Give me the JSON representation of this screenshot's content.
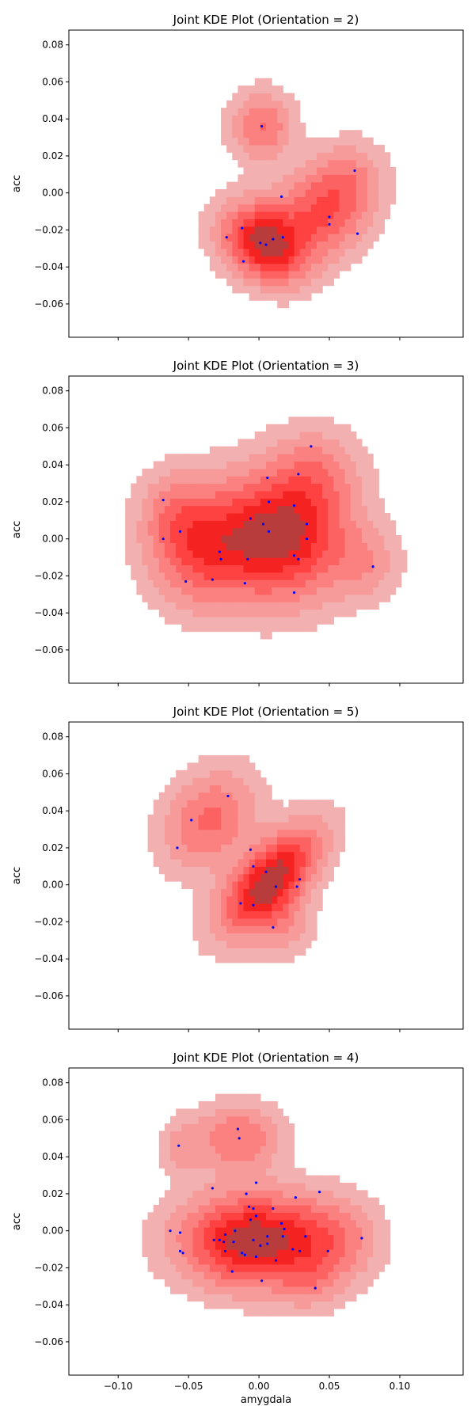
{
  "figure": {
    "xlabel": "amygdala"
  },
  "chart_data": [
    {
      "type": "scatter",
      "title": "Joint KDE Plot (Orientation = 2)",
      "ylabel": "acc",
      "xlim": [
        -0.135,
        0.145
      ],
      "ylim": [
        -0.078,
        0.088
      ],
      "fill_color": "#ff0000",
      "point_color": "#0000ff",
      "points": [
        [
          0.002,
          0.036
        ],
        [
          0.068,
          0.012
        ],
        [
          0.016,
          -0.002
        ],
        [
          0.05,
          -0.013
        ],
        [
          0.05,
          -0.017
        ],
        [
          0.07,
          -0.022
        ],
        [
          -0.023,
          -0.024
        ],
        [
          -0.012,
          -0.019
        ],
        [
          0.001,
          -0.027
        ],
        [
          0.005,
          -0.028
        ],
        [
          0.01,
          -0.025
        ],
        [
          0.017,
          -0.024
        ],
        [
          -0.011,
          -0.037
        ]
      ],
      "kde_blobs": [
        {
          "x": 0.005,
          "y": -0.027,
          "sx": 0.02,
          "sy": 0.013,
          "w": 1.0,
          "rot": -15
        },
        {
          "x": 0.045,
          "y": -0.01,
          "sx": 0.02,
          "sy": 0.015,
          "w": 0.55,
          "rot": 0
        },
        {
          "x": 0.002,
          "y": 0.036,
          "sx": 0.014,
          "sy": 0.012,
          "w": 0.42,
          "rot": 0
        },
        {
          "x": 0.065,
          "y": 0.008,
          "sx": 0.016,
          "sy": 0.013,
          "w": 0.28,
          "rot": 0
        }
      ]
    },
    {
      "type": "scatter",
      "title": "Joint KDE Plot (Orientation = 3)",
      "ylabel": "acc",
      "xlim": [
        -0.135,
        0.145
      ],
      "ylim": [
        -0.078,
        0.088
      ],
      "fill_color": "#ff0000",
      "point_color": "#0000ff",
      "points": [
        [
          0.037,
          0.05
        ],
        [
          0.006,
          0.033
        ],
        [
          0.028,
          0.035
        ],
        [
          -0.068,
          0.021
        ],
        [
          0.007,
          0.02
        ],
        [
          -0.006,
          0.011
        ],
        [
          0.025,
          0.018
        ],
        [
          0.034,
          0.008
        ],
        [
          0.003,
          0.008
        ],
        [
          0.007,
          0.004
        ],
        [
          0.034,
          0.0
        ],
        [
          -0.068,
          0.0
        ],
        [
          -0.056,
          0.004
        ],
        [
          -0.028,
          -0.007
        ],
        [
          -0.027,
          -0.011
        ],
        [
          -0.008,
          -0.011
        ],
        [
          0.025,
          -0.009
        ],
        [
          0.028,
          -0.011
        ],
        [
          0.081,
          -0.015
        ],
        [
          -0.052,
          -0.023
        ],
        [
          -0.033,
          -0.022
        ],
        [
          -0.01,
          -0.024
        ],
        [
          0.025,
          -0.029
        ]
      ],
      "kde_blobs": [
        {
          "x": 0.015,
          "y": 0.002,
          "sx": 0.03,
          "sy": 0.022,
          "w": 1.0,
          "rot": 0
        },
        {
          "x": -0.04,
          "y": -0.005,
          "sx": 0.024,
          "sy": 0.02,
          "w": 0.6,
          "rot": 0
        },
        {
          "x": 0.04,
          "y": 0.035,
          "sx": 0.02,
          "sy": 0.016,
          "w": 0.3,
          "rot": 0
        },
        {
          "x": 0.075,
          "y": -0.013,
          "sx": 0.016,
          "sy": 0.013,
          "w": 0.22,
          "rot": 0
        },
        {
          "x": -0.06,
          "y": 0.015,
          "sx": 0.016,
          "sy": 0.015,
          "w": 0.25,
          "rot": 0
        }
      ]
    },
    {
      "type": "scatter",
      "title": "Joint KDE Plot (Orientation = 5)",
      "ylabel": "acc",
      "xlim": [
        -0.135,
        0.145
      ],
      "ylim": [
        -0.078,
        0.088
      ],
      "fill_color": "#ff0000",
      "point_color": "#0000ff",
      "points": [
        [
          -0.022,
          0.048
        ],
        [
          -0.048,
          0.035
        ],
        [
          -0.058,
          0.02
        ],
        [
          -0.006,
          0.019
        ],
        [
          -0.004,
          0.01
        ],
        [
          0.005,
          0.007
        ],
        [
          0.029,
          0.003
        ],
        [
          0.012,
          -0.001
        ],
        [
          0.027,
          -0.001
        ],
        [
          -0.013,
          -0.01
        ],
        [
          -0.004,
          -0.011
        ],
        [
          0.01,
          -0.023
        ]
      ],
      "kde_blobs": [
        {
          "x": 0.008,
          "y": 0.003,
          "sx": 0.026,
          "sy": 0.012,
          "w": 1.0,
          "rot": 35
        },
        {
          "x": -0.035,
          "y": 0.035,
          "sx": 0.022,
          "sy": 0.016,
          "w": 0.45,
          "rot": 25
        },
        {
          "x": 0.015,
          "y": -0.02,
          "sx": 0.015,
          "sy": 0.012,
          "w": 0.25,
          "rot": 0
        }
      ]
    },
    {
      "type": "scatter",
      "title": "Joint KDE Plot (Orientation = 4)",
      "ylabel": "acc",
      "xlabel": "amygdala",
      "xlim": [
        -0.135,
        0.145
      ],
      "ylim": [
        -0.078,
        0.088
      ],
      "fill_color": "#ff0000",
      "point_color": "#0000ff",
      "points": [
        [
          -0.015,
          0.055
        ],
        [
          -0.014,
          0.05
        ],
        [
          -0.057,
          0.046
        ],
        [
          -0.002,
          0.026
        ],
        [
          -0.033,
          0.023
        ],
        [
          0.043,
          0.021
        ],
        [
          -0.009,
          0.02
        ],
        [
          0.026,
          0.018
        ],
        [
          -0.007,
          0.013
        ],
        [
          -0.004,
          0.012
        ],
        [
          0.01,
          0.012
        ],
        [
          -0.002,
          0.008
        ],
        [
          0.016,
          0.004
        ],
        [
          -0.006,
          0.006
        ],
        [
          -0.063,
          0.0
        ],
        [
          -0.017,
          0.0
        ],
        [
          0.018,
          0.001
        ],
        [
          -0.056,
          -0.001
        ],
        [
          -0.024,
          -0.002
        ],
        [
          0.033,
          -0.003
        ],
        [
          0.017,
          -0.003
        ],
        [
          0.006,
          -0.003
        ],
        [
          0.073,
          -0.004
        ],
        [
          -0.032,
          -0.005
        ],
        [
          -0.025,
          -0.006
        ],
        [
          -0.004,
          -0.005
        ],
        [
          -0.018,
          -0.006
        ],
        [
          -0.028,
          -0.005
        ],
        [
          0.001,
          -0.008
        ],
        [
          0.006,
          -0.007
        ],
        [
          0.024,
          -0.01
        ],
        [
          0.029,
          -0.011
        ],
        [
          0.049,
          -0.011
        ],
        [
          -0.056,
          -0.011
        ],
        [
          -0.054,
          -0.012
        ],
        [
          -0.024,
          -0.011
        ],
        [
          -0.012,
          -0.012
        ],
        [
          -0.01,
          -0.013
        ],
        [
          -0.002,
          -0.014
        ],
        [
          0.012,
          -0.016
        ],
        [
          -0.019,
          -0.022
        ],
        [
          0.002,
          -0.027
        ],
        [
          0.04,
          -0.031
        ]
      ],
      "kde_blobs": [
        {
          "x": -0.005,
          "y": -0.005,
          "sx": 0.032,
          "sy": 0.016,
          "w": 1.0,
          "rot": 0
        },
        {
          "x": -0.015,
          "y": 0.05,
          "sx": 0.02,
          "sy": 0.012,
          "w": 0.4,
          "rot": 0
        },
        {
          "x": 0.05,
          "y": -0.005,
          "sx": 0.022,
          "sy": 0.015,
          "w": 0.35,
          "rot": 0
        },
        {
          "x": -0.055,
          "y": 0.045,
          "sx": 0.01,
          "sy": 0.01,
          "w": 0.18,
          "rot": 0
        },
        {
          "x": 0.035,
          "y": -0.028,
          "sx": 0.015,
          "sy": 0.01,
          "w": 0.18,
          "rot": 0
        }
      ]
    }
  ]
}
